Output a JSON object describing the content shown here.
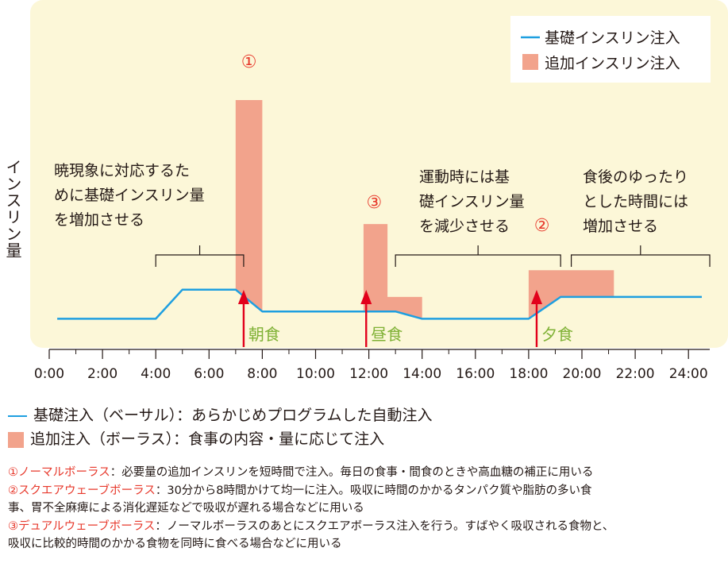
{
  "chart_data": {
    "type": "area",
    "ylabel": "インスリン量",
    "x_ticks": [
      "0:00",
      "2:00",
      "4:00",
      "6:00",
      "8:00",
      "10:00",
      "12:00",
      "14:00",
      "16:00",
      "18:00",
      "20:00",
      "22:00",
      "24:00"
    ],
    "series": [
      {
        "name": "基礎インスリン注入",
        "kind": "line",
        "color": "#1e9fe0",
        "x": [
          0.3,
          4.0,
          5.0,
          7.0,
          8.0,
          13.0,
          14.0,
          18.0,
          19.2,
          24.5
        ],
        "y": [
          1.0,
          1.0,
          2.2,
          2.2,
          1.3,
          1.3,
          1.0,
          1.0,
          1.9,
          1.9
        ]
      },
      {
        "name": "追加インスリン注入",
        "kind": "area",
        "color": "#f2a38c",
        "polygons": [
          [
            [
              7.0,
              2.2
            ],
            [
              7.0,
              10.0
            ],
            [
              8.0,
              10.0
            ],
            [
              8.0,
              1.3
            ]
          ],
          [
            [
              11.8,
              1.3
            ],
            [
              11.8,
              4.9
            ],
            [
              12.7,
              4.9
            ],
            [
              12.7,
              1.9
            ],
            [
              14.0,
              1.9
            ],
            [
              14.0,
              1.0
            ],
            [
              13.0,
              1.3
            ]
          ],
          [
            [
              18.0,
              1.0
            ],
            [
              18.0,
              3.0
            ],
            [
              21.2,
              3.0
            ],
            [
              21.2,
              1.9
            ],
            [
              19.2,
              1.9
            ]
          ]
        ]
      }
    ],
    "brackets": [
      {
        "from": 4.0,
        "to": 7.3,
        "lines": [
          "暁現象に対応するた",
          "めに基礎インスリン量",
          "を増加させる"
        ]
      },
      {
        "from": 13.0,
        "to": 19.2,
        "lines": [
          "運動時には基",
          "礎インスリン量",
          "を減少させる"
        ]
      },
      {
        "from": 19.6,
        "to": 24.8,
        "lines": [
          "食後のゆったり",
          "とした時間には",
          "増加させる"
        ]
      }
    ],
    "meals": [
      {
        "x": 7.3,
        "label": "朝食"
      },
      {
        "x": 11.9,
        "label": "昼食"
      },
      {
        "x": 18.3,
        "label": "夕食"
      }
    ],
    "bolus_markers": [
      {
        "x": 7.5,
        "label": "①"
      },
      {
        "x": 12.2,
        "label": "③"
      },
      {
        "x": 18.5,
        "label": "②"
      }
    ],
    "legend": {
      "placement": "top-right",
      "items": [
        "基礎インスリン注入",
        "追加インスリン注入"
      ]
    },
    "colors": {
      "panel": "#fcf7d8",
      "basal": "#1e9fe0",
      "bolus": "#f2a38c",
      "arrow": "#e2001b",
      "meal": "#7fb135",
      "marker": "#e7382b"
    }
  },
  "bottom_legend": {
    "basal": "基礎注入（ベーサル）：あらかじめプログラムした自動注入",
    "bolus": "追加注入（ボーラス）：食事の内容・量に応じて注入"
  },
  "notes": [
    {
      "head": "①ノーマルボーラス",
      "body_lines": [
        "：必要量の追加インスリンを短時間で注入。毎日の食事・間食のときや高血糖の補正に用いる"
      ]
    },
    {
      "head": "②スクエアウェーブボーラス",
      "body_lines": [
        "：30分から8時間かけて均一に注入。吸収に時間のかかるタンパク質や脂肪の多い食",
        "事、胃不全麻痺による消化遅延などで吸収が遅れる場合などに用いる"
      ]
    },
    {
      "head": "③デュアルウェーブボーラス",
      "body_lines": [
        "：ノーマルボーラスのあとにスクエアボーラス注入を行う。すばやく吸収される食物と、",
        "吸収に比較的時間のかかる食物を同時に食べる場合などに用いる"
      ]
    }
  ]
}
